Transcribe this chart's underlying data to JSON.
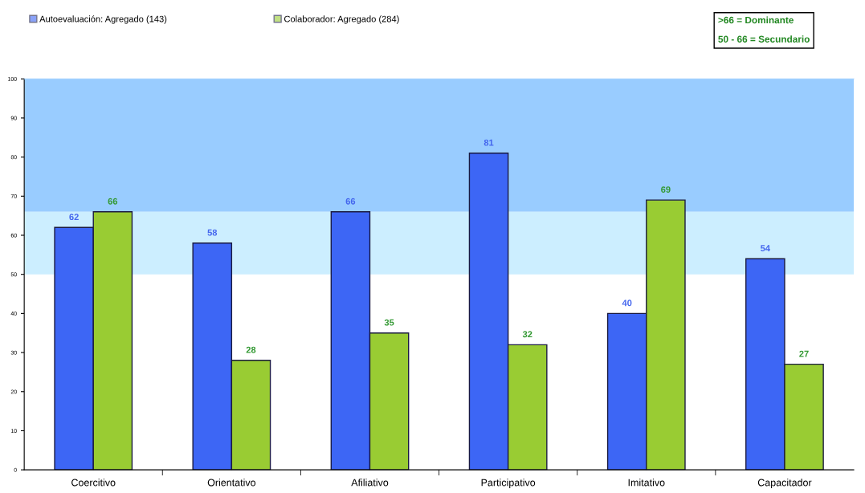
{
  "chart_data": {
    "type": "bar",
    "categories": [
      "Coercitivo",
      "Orientativo",
      "Afiliativo",
      "Participativo",
      "Imitativo",
      "Capacitador"
    ],
    "series": [
      {
        "name": "Autoevaluación: Agregado (143)",
        "color": "#3d66f5",
        "values": [
          62,
          58,
          66,
          81,
          40,
          54
        ]
      },
      {
        "name": "Colaborador: Agregado (284)",
        "color": "#99cc33",
        "values": [
          66,
          28,
          35,
          32,
          69,
          27
        ]
      }
    ],
    "ylim": [
      0,
      100
    ],
    "yticks": [
      0,
      10,
      20,
      30,
      40,
      50,
      60,
      70,
      80,
      90,
      100
    ],
    "bands": [
      {
        "axis": "y",
        "from": 66,
        "to": 100,
        "color": "#99ccff"
      },
      {
        "axis": "y",
        "from": 50,
        "to": 66,
        "color": "#cceeff"
      }
    ],
    "annotations": [
      ">66 = Dominante",
      "50 - 66 = Secundario"
    ],
    "data_labels": true,
    "legend": "top left",
    "grid": false
  }
}
